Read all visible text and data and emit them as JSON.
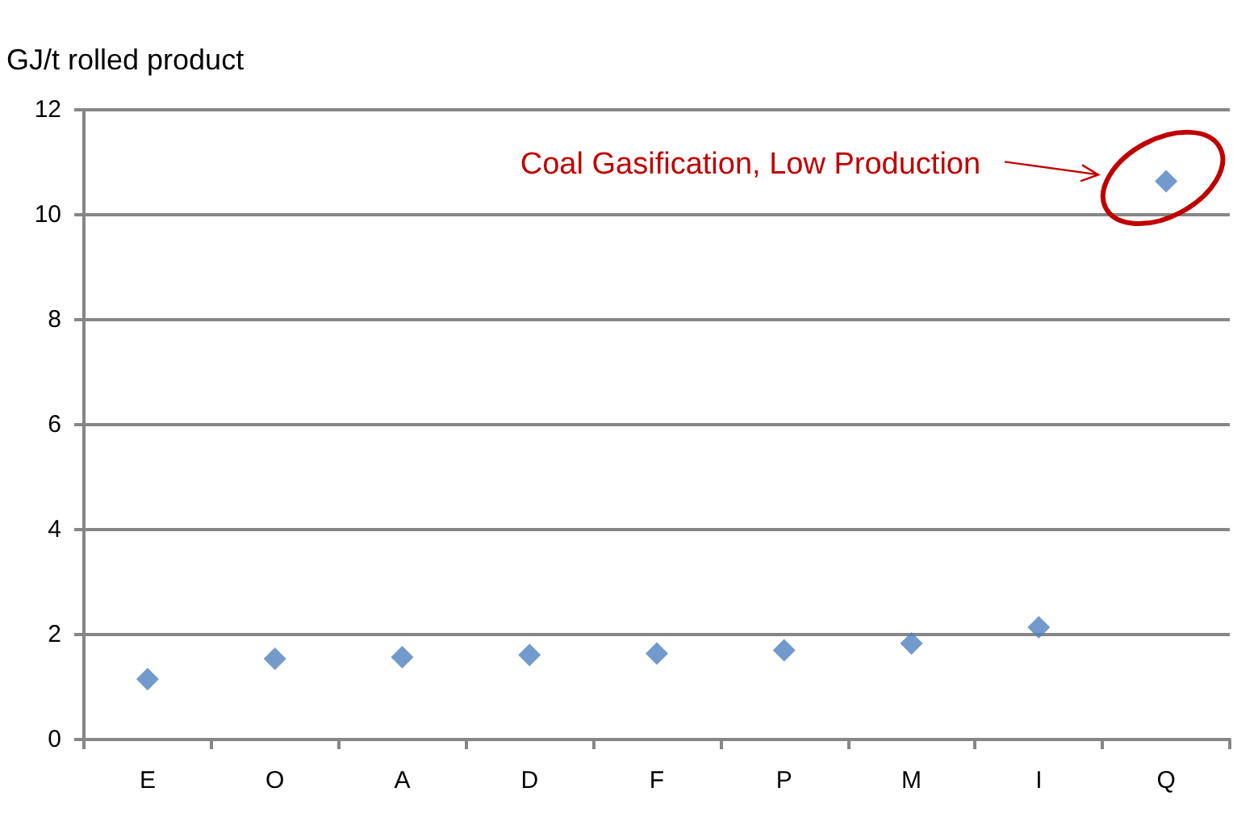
{
  "chart_data": {
    "type": "scatter",
    "ylabel": "GJ/t rolled product",
    "categories": [
      "E",
      "O",
      "A",
      "D",
      "F",
      "P",
      "M",
      "I",
      "Q"
    ],
    "values": [
      1.15,
      1.54,
      1.57,
      1.61,
      1.64,
      1.7,
      1.83,
      2.14,
      10.64
    ],
    "color": "#4f81bd",
    "marker": "diamond",
    "ylim": [
      0,
      12
    ],
    "yticks": [
      0,
      2,
      4,
      6,
      8,
      10,
      12
    ],
    "grid": "y",
    "annotations": [
      "Coal Gasification, Low Production"
    ]
  }
}
